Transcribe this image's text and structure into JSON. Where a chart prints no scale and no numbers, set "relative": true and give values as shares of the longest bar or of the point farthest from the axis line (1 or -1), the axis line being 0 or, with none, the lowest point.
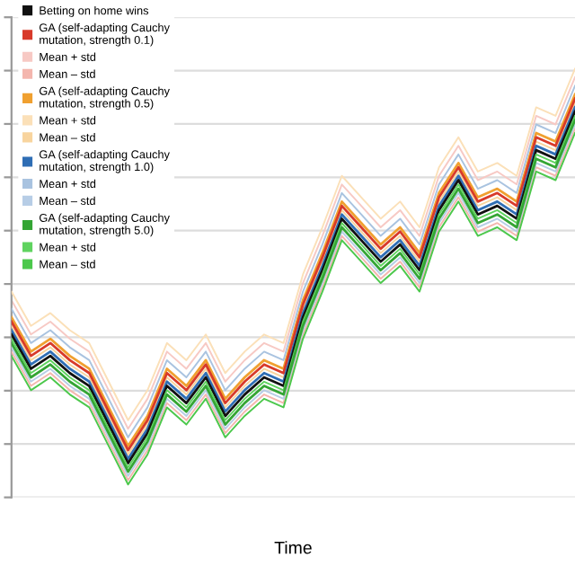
{
  "chart_data": {
    "type": "line",
    "relative": true,
    "xlabel": "Time",
    "grid": "y",
    "legend": "top left",
    "marker": "none",
    "line_style": "solid",
    "categories": [
      null,
      null,
      null,
      null,
      null,
      null,
      null,
      null,
      null,
      null,
      null,
      null,
      null,
      null,
      null,
      null,
      null,
      null,
      null,
      null,
      null,
      null,
      null,
      null,
      null,
      null,
      null,
      null,
      null,
      null
    ],
    "series": [
      {
        "name": "Mean + std",
        "color": "#f7c9c4",
        "values": [
          0.46,
          0.38,
          0.41,
          0.37,
          0.34,
          0.25,
          0.16,
          0.23,
          0.34,
          0.3,
          0.36,
          0.27,
          0.32,
          0.36,
          0.34,
          0.5,
          0.61,
          0.73,
          0.68,
          0.63,
          0.67,
          0.61,
          0.75,
          0.82,
          0.74,
          0.76,
          0.73,
          0.89,
          0.87,
          0.98
        ]
      },
      {
        "name": "Mean + std",
        "color": "#fbe0b8",
        "values": [
          0.48,
          0.4,
          0.43,
          0.39,
          0.36,
          0.27,
          0.18,
          0.25,
          0.36,
          0.32,
          0.38,
          0.29,
          0.34,
          0.38,
          0.36,
          0.52,
          0.63,
          0.75,
          0.7,
          0.65,
          0.69,
          0.63,
          0.77,
          0.84,
          0.76,
          0.78,
          0.75,
          0.91,
          0.89,
          1.0
        ]
      },
      {
        "name": "Mean – std",
        "color": "#f4b6ae",
        "values": [
          0.34,
          0.26,
          0.29,
          0.25,
          0.22,
          0.13,
          0.04,
          0.11,
          0.22,
          0.18,
          0.24,
          0.15,
          0.2,
          0.24,
          0.22,
          0.38,
          0.49,
          0.61,
          0.56,
          0.51,
          0.55,
          0.49,
          0.63,
          0.7,
          0.62,
          0.64,
          0.61,
          0.77,
          0.75,
          0.86
        ]
      },
      {
        "name": "Mean – std",
        "color": "#f8d49e",
        "values": [
          0.4,
          0.32,
          0.35,
          0.31,
          0.28,
          0.19,
          0.1,
          0.17,
          0.28,
          0.24,
          0.3,
          0.21,
          0.26,
          0.3,
          0.28,
          0.44,
          0.55,
          0.67,
          0.62,
          0.57,
          0.61,
          0.55,
          0.69,
          0.76,
          0.68,
          0.7,
          0.67,
          0.83,
          0.81,
          0.92
        ]
      },
      {
        "name": "GA (self-adapting Cauchy mutation, strength 0.5)",
        "color": "#f0a030",
        "values": [
          0.42,
          0.34,
          0.37,
          0.33,
          0.3,
          0.21,
          0.12,
          0.19,
          0.3,
          0.26,
          0.32,
          0.23,
          0.28,
          0.32,
          0.3,
          0.46,
          0.57,
          0.69,
          0.64,
          0.59,
          0.63,
          0.57,
          0.71,
          0.78,
          0.7,
          0.72,
          0.69,
          0.85,
          0.83,
          0.94
        ]
      },
      {
        "name": "GA (self-adapting Cauchy mutation, strength 0.1)",
        "color": "#d83a2a",
        "values": [
          0.41,
          0.33,
          0.36,
          0.32,
          0.29,
          0.2,
          0.11,
          0.18,
          0.29,
          0.25,
          0.31,
          0.22,
          0.27,
          0.31,
          0.29,
          0.45,
          0.56,
          0.68,
          0.63,
          0.58,
          0.62,
          0.56,
          0.7,
          0.77,
          0.69,
          0.71,
          0.68,
          0.84,
          0.82,
          0.93
        ]
      },
      {
        "name": "Mean + std",
        "color": "#a9c3e0",
        "values": [
          0.44,
          0.36,
          0.39,
          0.35,
          0.32,
          0.23,
          0.14,
          0.21,
          0.32,
          0.28,
          0.34,
          0.25,
          0.3,
          0.34,
          0.32,
          0.48,
          0.59,
          0.71,
          0.66,
          0.61,
          0.65,
          0.59,
          0.73,
          0.8,
          0.72,
          0.74,
          0.71,
          0.87,
          0.85,
          0.96
        ]
      },
      {
        "name": "Mean – std",
        "color": "#b7cde6",
        "values": [
          0.35,
          0.27,
          0.3,
          0.26,
          0.23,
          0.14,
          0.05,
          0.12,
          0.23,
          0.19,
          0.25,
          0.16,
          0.21,
          0.25,
          0.23,
          0.39,
          0.5,
          0.62,
          0.57,
          0.52,
          0.56,
          0.5,
          0.64,
          0.71,
          0.63,
          0.65,
          0.62,
          0.78,
          0.76,
          0.87
        ]
      },
      {
        "name": "GA (self-adapting Cauchy mutation, strength 1.0)",
        "color": "#2f6eb5",
        "values": [
          0.39,
          0.31,
          0.34,
          0.3,
          0.27,
          0.18,
          0.09,
          0.16,
          0.27,
          0.23,
          0.29,
          0.2,
          0.25,
          0.29,
          0.27,
          0.43,
          0.54,
          0.66,
          0.61,
          0.56,
          0.6,
          0.54,
          0.68,
          0.75,
          0.67,
          0.69,
          0.66,
          0.82,
          0.8,
          0.91
        ]
      },
      {
        "name": "Betting on home wins",
        "color": "#111111",
        "values": [
          0.38,
          0.3,
          0.33,
          0.29,
          0.26,
          0.17,
          0.08,
          0.15,
          0.26,
          0.22,
          0.28,
          0.19,
          0.24,
          0.28,
          0.26,
          0.42,
          0.53,
          0.65,
          0.6,
          0.55,
          0.59,
          0.53,
          0.67,
          0.74,
          0.66,
          0.68,
          0.65,
          0.81,
          0.79,
          0.9
        ]
      },
      {
        "name": "Mean + std",
        "color": "#5fd35f",
        "values": [
          0.37,
          0.29,
          0.32,
          0.28,
          0.25,
          0.16,
          0.07,
          0.14,
          0.25,
          0.21,
          0.27,
          0.18,
          0.23,
          0.27,
          0.25,
          0.41,
          0.52,
          0.64,
          0.59,
          0.54,
          0.58,
          0.52,
          0.66,
          0.73,
          0.65,
          0.67,
          0.64,
          0.8,
          0.78,
          0.89
        ]
      },
      {
        "name": "Mean – std",
        "color": "#4cc84c",
        "values": [
          0.33,
          0.25,
          0.28,
          0.24,
          0.21,
          0.12,
          0.03,
          0.1,
          0.21,
          0.17,
          0.23,
          0.14,
          0.19,
          0.23,
          0.21,
          0.37,
          0.48,
          0.6,
          0.55,
          0.5,
          0.54,
          0.48,
          0.62,
          0.69,
          0.61,
          0.63,
          0.6,
          0.76,
          0.74,
          0.85
        ]
      },
      {
        "name": "GA (self-adapting Cauchy mutation, strength 5.0)",
        "color": "#34a534",
        "values": [
          0.36,
          0.28,
          0.31,
          0.27,
          0.24,
          0.15,
          0.06,
          0.13,
          0.24,
          0.2,
          0.26,
          0.17,
          0.22,
          0.26,
          0.24,
          0.4,
          0.51,
          0.63,
          0.58,
          0.53,
          0.57,
          0.51,
          0.65,
          0.72,
          0.64,
          0.66,
          0.63,
          0.79,
          0.77,
          0.88
        ]
      }
    ]
  }
}
